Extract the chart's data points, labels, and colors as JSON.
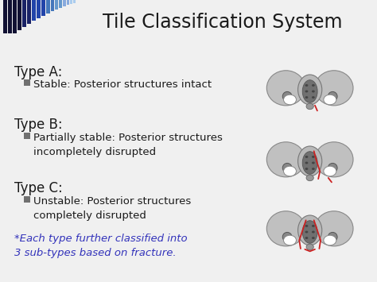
{
  "title": "Tile Classification System",
  "background_color": "#f0f0f0",
  "title_color": "#1a1a1a",
  "title_fontsize": 17,
  "type_a_label": "Type A:",
  "type_b_label": "Type B:",
  "type_c_label": "Type C:",
  "footnote_line1": "*Each type further classified into",
  "footnote_line2": "3 sub-types based on fracture.",
  "footnote_color": "#3333bb",
  "label_color": "#1a1a1a",
  "desc_color": "#1a1a1a",
  "bullet_color": "#707070",
  "label_fontsize": 12,
  "desc_fontsize": 9.5,
  "footnote_fontsize": 9.5,
  "stripe_dark1": "#111133",
  "stripe_dark2": "#1a2266",
  "stripe_mid1": "#2244aa",
  "stripe_mid2": "#4477bb",
  "stripe_light1": "#6699cc",
  "stripe_light2": "#88aadd",
  "stripe_light3": "#aaccee",
  "pelvis_gray": "#c0c0c0",
  "pelvis_dark": "#555555",
  "pelvis_mid": "#888888",
  "fracture_color": "#cc2222"
}
